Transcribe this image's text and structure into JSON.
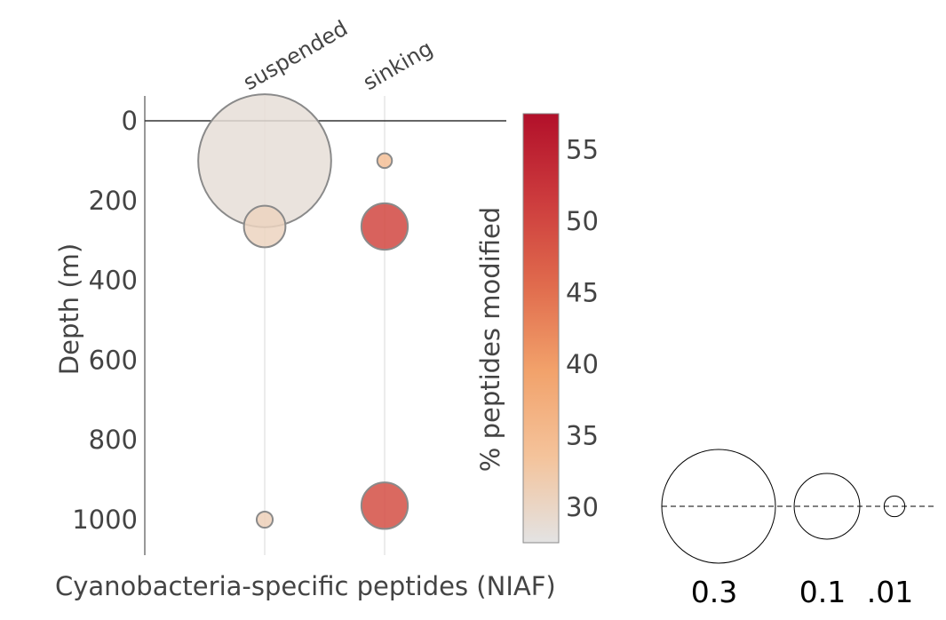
{
  "chart_data": {
    "type": "scatter",
    "categories": [
      "suspended",
      "sinking"
    ],
    "xlabel": "Cyanobacteria-specific peptides (NIAF)",
    "ylabel": "Depth (m)",
    "ylim": [
      -60,
      1085
    ],
    "y_ticks": [
      {
        "value": 0,
        "label": "0"
      },
      {
        "value": 200,
        "label": "200"
      },
      {
        "value": 400,
        "label": "400"
      },
      {
        "value": 600,
        "label": "600"
      },
      {
        "value": 800,
        "label": "800"
      },
      {
        "value": 1000,
        "label": "1000"
      }
    ],
    "points": [
      {
        "category": "suspended",
        "depth": 100,
        "niaf": 0.41,
        "pct_modified": 28.5
      },
      {
        "category": "suspended",
        "depth": 265,
        "niaf": 0.04,
        "pct_modified": 30.5
      },
      {
        "category": "suspended",
        "depth": 1000,
        "niaf": 0.006,
        "pct_modified": 31
      },
      {
        "category": "sinking",
        "depth": 100,
        "niaf": 0.005,
        "pct_modified": 34
      },
      {
        "category": "sinking",
        "depth": 265,
        "niaf": 0.05,
        "pct_modified": 50
      },
      {
        "category": "sinking",
        "depth": 965,
        "niaf": 0.05,
        "pct_modified": 49
      }
    ],
    "colorbar": {
      "title": "% peptides modified",
      "range": [
        27.5,
        57.5
      ],
      "ticks": [
        30,
        35,
        40,
        45,
        50,
        55
      ],
      "colors": [
        "#e3e3e3",
        "#f4c39b",
        "#f2a26b",
        "#e06b4d",
        "#cc3b3d",
        "#b2102a"
      ]
    },
    "size_legend": [
      {
        "value": 0.3,
        "label": "0.3"
      },
      {
        "value": 0.1,
        "label": "0.1"
      },
      {
        "value": 0.01,
        "label": ".01"
      }
    ]
  }
}
